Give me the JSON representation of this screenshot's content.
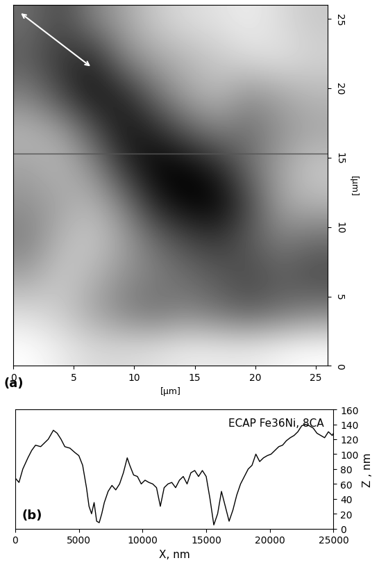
{
  "chart_data": [
    {
      "type": "heatmap",
      "panel_label": "(a)",
      "x_label": "[µm]",
      "y_label": "[µm]",
      "xlim": [
        0,
        26
      ],
      "ylim": [
        0,
        26
      ],
      "xticks": [
        0,
        5,
        10,
        15,
        20,
        25
      ],
      "yticks": [
        0,
        5,
        10,
        15,
        20,
        25
      ],
      "profile_line_y": 15.3,
      "cells": [
        [
          40,
          30,
          45,
          55,
          65,
          70,
          72,
          75,
          70,
          65
        ],
        [
          35,
          25,
          20,
          45,
          55,
          60,
          65,
          70,
          72,
          68
        ],
        [
          45,
          30,
          15,
          20,
          40,
          55,
          60,
          50,
          55,
          60
        ],
        [
          60,
          55,
          35,
          15,
          20,
          35,
          45,
          40,
          50,
          55
        ],
        [
          55,
          60,
          50,
          25,
          10,
          10,
          20,
          40,
          55,
          65
        ],
        [
          50,
          55,
          60,
          45,
          20,
          10,
          10,
          30,
          55,
          60
        ],
        [
          45,
          60,
          65,
          55,
          40,
          30,
          25,
          35,
          45,
          40
        ],
        [
          55,
          65,
          60,
          50,
          45,
          40,
          35,
          30,
          35,
          30
        ],
        [
          70,
          65,
          55,
          45,
          40,
          45,
          40,
          35,
          40,
          45
        ],
        [
          80,
          75,
          70,
          70,
          72,
          75,
          75,
          75,
          78,
          80
        ]
      ],
      "color": "gray"
    },
    {
      "type": "line",
      "panel_label": "(b)",
      "title": "ECAP Fe36Ni, 8CA",
      "x_label": "X, nm",
      "y_label": "Z , nm",
      "xlim": [
        0,
        25000
      ],
      "ylim": [
        0,
        160
      ],
      "xticks": [
        0,
        5000,
        10000,
        15000,
        20000,
        25000
      ],
      "yticks": [
        0,
        20,
        40,
        60,
        80,
        100,
        120,
        140,
        160
      ],
      "color": "#000000",
      "x": [
        0,
        300,
        600,
        1000,
        1300,
        1600,
        2000,
        2300,
        2600,
        3000,
        3300,
        3600,
        3900,
        4300,
        4700,
        5000,
        5300,
        5600,
        5800,
        6000,
        6200,
        6400,
        6600,
        6800,
        7000,
        7300,
        7600,
        7900,
        8200,
        8500,
        8800,
        9000,
        9300,
        9600,
        9900,
        10200,
        10500,
        10800,
        11100,
        11400,
        11700,
        12000,
        12300,
        12600,
        12900,
        13200,
        13500,
        13800,
        14100,
        14400,
        14700,
        15000,
        15300,
        15600,
        15900,
        16200,
        16500,
        16800,
        17100,
        17400,
        17700,
        18000,
        18300,
        18600,
        18900,
        19200,
        19500,
        19800,
        20100,
        20400,
        20700,
        21000,
        21300,
        21600,
        21900,
        22200,
        22500,
        22800,
        23100,
        23400,
        23700,
        24000,
        24300,
        24600,
        24900,
        25000
      ],
      "values": [
        68,
        62,
        80,
        95,
        105,
        112,
        110,
        115,
        120,
        132,
        128,
        120,
        110,
        108,
        102,
        98,
        85,
        55,
        30,
        20,
        35,
        10,
        8,
        20,
        35,
        50,
        58,
        52,
        60,
        75,
        95,
        85,
        72,
        70,
        60,
        65,
        62,
        60,
        55,
        30,
        55,
        60,
        62,
        55,
        65,
        70,
        60,
        75,
        78,
        70,
        78,
        70,
        40,
        5,
        20,
        50,
        30,
        10,
        25,
        45,
        60,
        70,
        80,
        85,
        100,
        90,
        95,
        98,
        100,
        105,
        110,
        112,
        118,
        122,
        125,
        130,
        138,
        140,
        138,
        135,
        128,
        125,
        122,
        130,
        125,
        128
      ]
    }
  ]
}
